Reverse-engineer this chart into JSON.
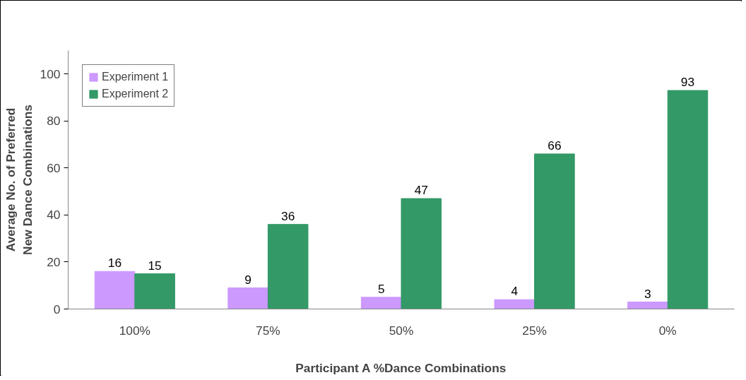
{
  "chart_data": {
    "type": "bar",
    "xlabel": "Participant A %Dance Combinations",
    "ylabel": "Average No. of Preferred New Dance Combinations",
    "categories": [
      "100%",
      "75%",
      "50%",
      "25%",
      "0%"
    ],
    "series": [
      {
        "name": "Experiment 1",
        "color": "#cc99ff",
        "values": [
          16,
          9,
          5,
          4,
          3
        ]
      },
      {
        "name": "Experiment 2",
        "color": "#339966",
        "values": [
          15,
          36,
          47,
          66,
          93
        ]
      }
    ],
    "ylim": [
      0,
      110
    ],
    "yticks": [
      0,
      20,
      40,
      60,
      80,
      100
    ],
    "data_labels": true,
    "grid": false,
    "legend": "top left"
  }
}
